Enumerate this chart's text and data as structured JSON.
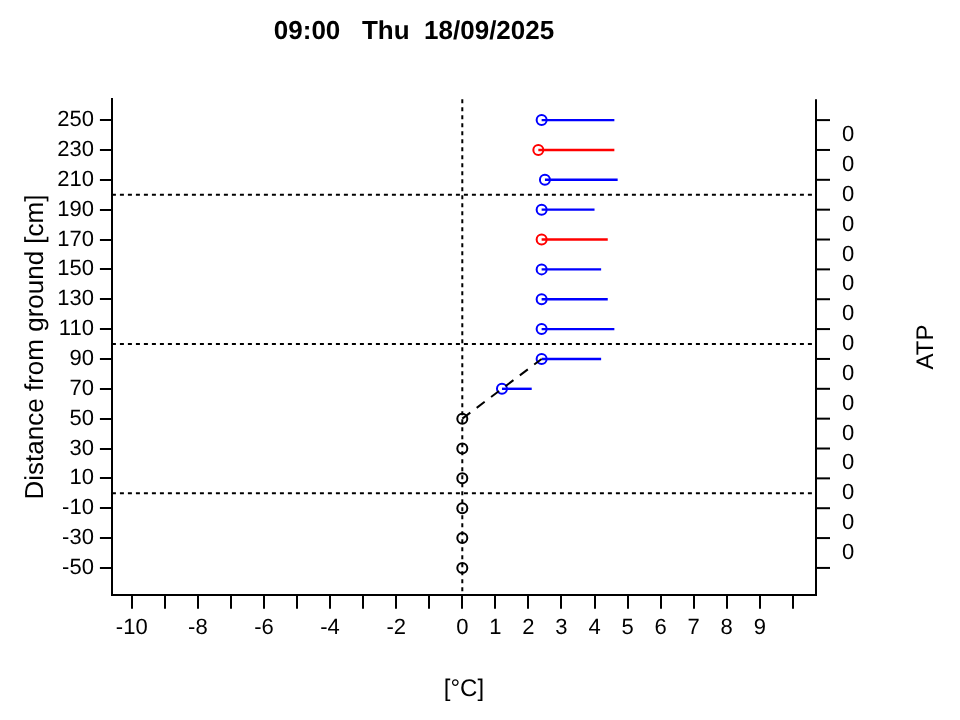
{
  "chart_data": {
    "type": "scatter",
    "title": "09:00   Thu  18/09/2025",
    "xlabel": "[°C]",
    "ylabel": "Distance from ground [cm]",
    "y2label": "ATP",
    "xlim": [
      -10.6,
      10.7
    ],
    "xticks": [
      -10,
      {
        "value": -9,
        "label": null
      },
      -8,
      {
        "value": -7,
        "label": null
      },
      -6,
      {
        "value": -5,
        "label": null
      },
      -4,
      {
        "value": -3,
        "label": null
      },
      -2,
      {
        "value": -1,
        "label": null
      },
      0,
      1,
      2,
      3,
      4,
      5,
      6,
      7,
      8,
      9,
      {
        "value": 10,
        "label": null
      }
    ],
    "ylim": [
      -68,
      264
    ],
    "yticks": [
      -50,
      -30,
      -10,
      10,
      30,
      50,
      70,
      90,
      110,
      130,
      150,
      170,
      190,
      210,
      230,
      250
    ],
    "annotations": [
      "0",
      "0",
      "0",
      "0",
      "0",
      "0",
      "0",
      "0",
      "0",
      "0",
      "0",
      "0",
      "0",
      "0",
      "0"
    ],
    "grid": false,
    "legend": false,
    "marker": "circle",
    "ref_lines": [
      {
        "axis": "x",
        "value": 0,
        "color": "#000000",
        "line_style": "dotted"
      },
      {
        "axis": "y",
        "value": 200,
        "color": "#000000",
        "line_style": "dotted"
      },
      {
        "axis": "y",
        "value": 100,
        "color": "#000000",
        "line_style": "dotted"
      },
      {
        "axis": "y",
        "value": 0,
        "color": "#000000",
        "line_style": "dotted"
      }
    ],
    "series": [
      {
        "type": "line",
        "color": "#000000",
        "line_style": "dashed",
        "marker": "none",
        "x": [
          0,
          1.2,
          2.4
        ],
        "values": [
          50,
          70,
          90
        ]
      },
      {
        "type": "scatter",
        "color": "#0000ff",
        "x": [
          2.4,
          2.5,
          2.4,
          2.4,
          2.4,
          2.4,
          2.4,
          1.2
        ],
        "values": [
          250,
          210,
          190,
          150,
          130,
          110,
          90,
          70
        ],
        "xerrors": [
          [
            2.4,
            4.6
          ],
          [
            2.5,
            4.7
          ],
          [
            2.4,
            4.0
          ],
          [
            2.4,
            4.2
          ],
          [
            2.4,
            4.4
          ],
          [
            2.4,
            4.6
          ],
          [
            2.4,
            4.2
          ],
          [
            1.2,
            2.1
          ]
        ]
      },
      {
        "type": "scatter",
        "color": "#ff0000",
        "x": [
          2.3,
          2.4
        ],
        "values": [
          230,
          170
        ],
        "xerrors": [
          [
            2.3,
            4.6
          ],
          [
            2.4,
            4.4
          ]
        ]
      },
      {
        "type": "scatter",
        "color": "#000000",
        "x": [
          0,
          0,
          0,
          0,
          0,
          0
        ],
        "values": [
          50,
          30,
          10,
          -10,
          -30,
          -50
        ]
      }
    ]
  }
}
